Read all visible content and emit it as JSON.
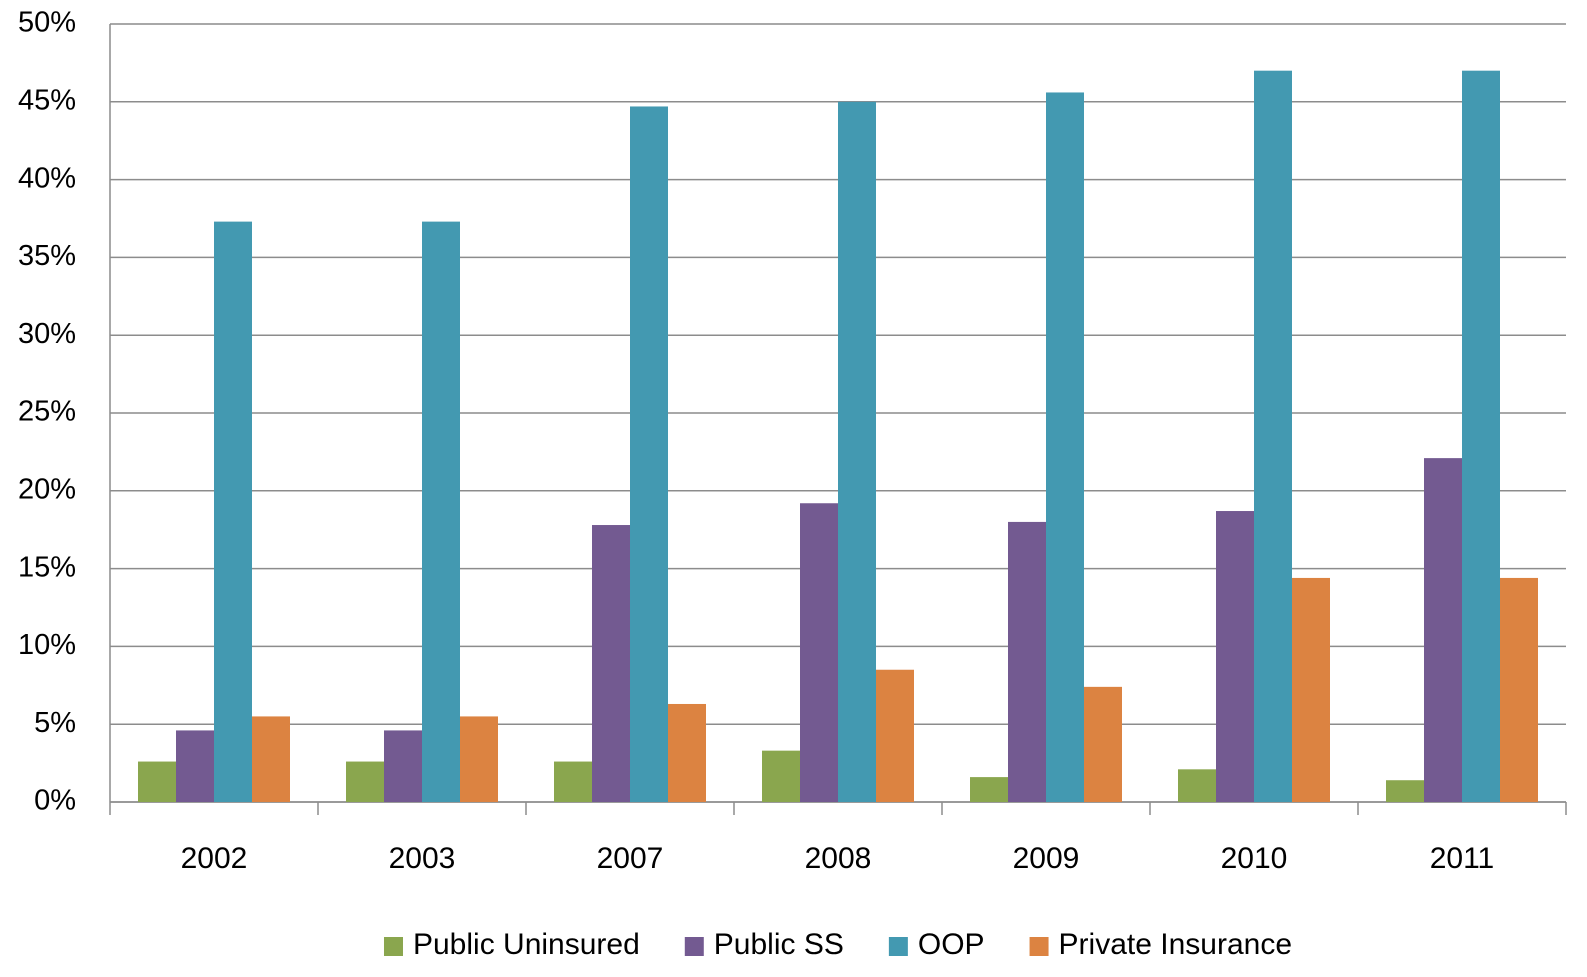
{
  "chart_data": {
    "type": "bar",
    "categories": [
      "2002",
      "2003",
      "2007",
      "2008",
      "2009",
      "2010",
      "2011"
    ],
    "series": [
      {
        "name": "Public Uninsured",
        "color": "#8aa64e",
        "values": [
          2.6,
          2.6,
          2.6,
          3.3,
          1.6,
          2.1,
          1.4
        ]
      },
      {
        "name": "Public SS",
        "color": "#735a91",
        "values": [
          4.6,
          4.6,
          17.8,
          19.2,
          18.0,
          18.7,
          22.1
        ]
      },
      {
        "name": "OOP",
        "color": "#4399b1",
        "values": [
          37.3,
          37.3,
          44.7,
          45.0,
          45.6,
          47.0,
          47.0
        ]
      },
      {
        "name": "Private Insurance",
        "color": "#dc8341",
        "values": [
          5.5,
          5.5,
          6.3,
          8.5,
          7.4,
          14.4,
          14.4
        ]
      }
    ],
    "ylim": [
      0,
      50
    ],
    "yticks": [
      {
        "value": 0,
        "label": "0%"
      },
      {
        "value": 5,
        "label": "5%"
      },
      {
        "value": 10,
        "label": "10%"
      },
      {
        "value": 15,
        "label": "15%"
      },
      {
        "value": 20,
        "label": "20%"
      },
      {
        "value": 25,
        "label": "25%"
      },
      {
        "value": 30,
        "label": "30%"
      },
      {
        "value": 35,
        "label": "35%"
      },
      {
        "value": 40,
        "label": "40%"
      },
      {
        "value": 45,
        "label": "45%"
      },
      {
        "value": 50,
        "label": "50%"
      }
    ],
    "grid": true,
    "legend": "bottom"
  }
}
